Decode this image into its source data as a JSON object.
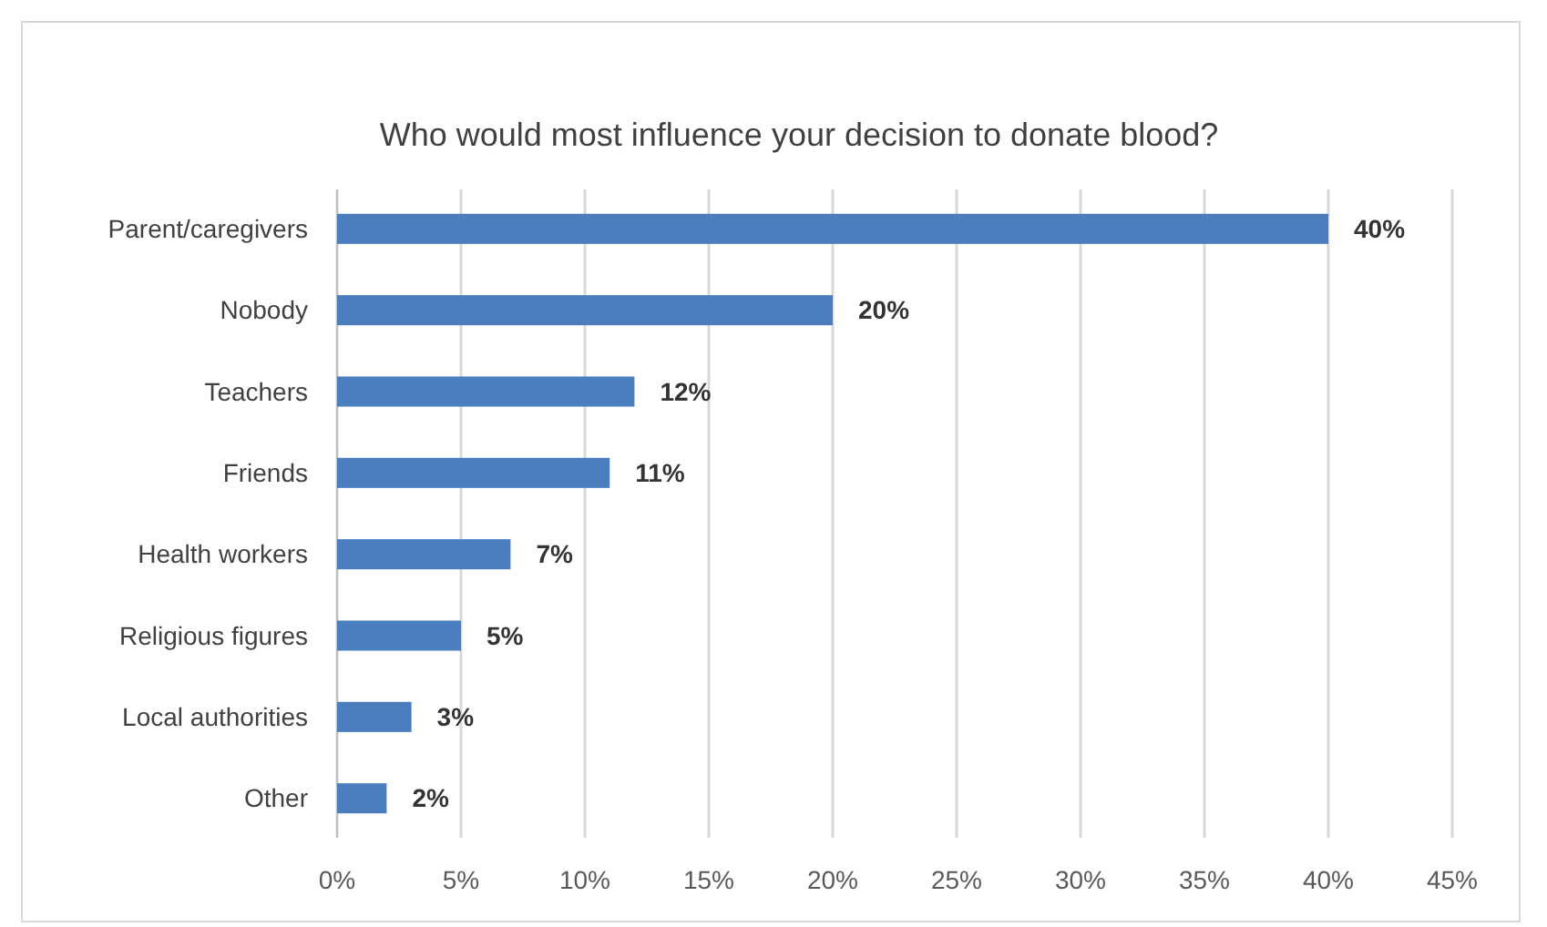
{
  "chart_data": {
    "type": "bar",
    "orientation": "horizontal",
    "title": "Who would most influence your decision to donate blood?",
    "categories": [
      "Parent/caregivers",
      "Nobody",
      "Teachers",
      "Friends",
      "Health workers",
      "Religious figures",
      "Local authorities",
      "Other"
    ],
    "values": [
      40,
      20,
      12,
      11,
      7,
      5,
      3,
      2
    ],
    "value_labels": [
      "40%",
      "20%",
      "12%",
      "11%",
      "7%",
      "5%",
      "3%",
      "2%"
    ],
    "color": "#4a7ebf",
    "xlim": [
      0,
      45
    ],
    "xticks": [
      {
        "value": 0,
        "label": "0%"
      },
      {
        "value": 5,
        "label": "5%"
      },
      {
        "value": 10,
        "label": "10%"
      },
      {
        "value": 15,
        "label": "15%"
      },
      {
        "value": 20,
        "label": "20%"
      },
      {
        "value": 25,
        "label": "25%"
      },
      {
        "value": 30,
        "label": "30%"
      },
      {
        "value": 35,
        "label": "35%"
      },
      {
        "value": 40,
        "label": "40%"
      },
      {
        "value": 45,
        "label": "45%"
      }
    ],
    "grid": "x"
  }
}
